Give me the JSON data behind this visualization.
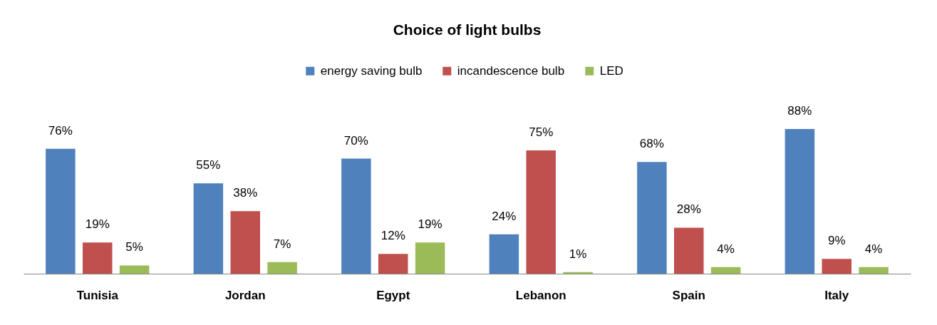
{
  "chart_data": {
    "type": "bar",
    "title": "Choice of light bulbs",
    "categories": [
      "Tunisia",
      "Jordan",
      "Egypt",
      "Lebanon",
      "Spain",
      "Italy"
    ],
    "series": [
      {
        "name": "energy saving bulb",
        "color": "#4f81bd",
        "values": [
          76,
          55,
          70,
          24,
          68,
          88
        ],
        "value_labels": [
          "76%",
          "55%",
          "70%",
          "24%",
          "68%",
          "88%"
        ]
      },
      {
        "name": "incandescence bulb",
        "color": "#c0504d",
        "values": [
          19,
          38,
          12,
          75,
          28,
          9
        ],
        "value_labels": [
          "19%",
          "38%",
          "12%",
          "75%",
          "28%",
          "9%"
        ]
      },
      {
        "name": "LED",
        "color": "#9bbb59",
        "values": [
          5,
          7,
          19,
          1,
          4,
          4
        ],
        "value_labels": [
          "5%",
          "7%",
          "19%",
          "1%",
          "4%",
          "4%"
        ]
      }
    ],
    "legend": "top",
    "tick_labels": "x"
  }
}
